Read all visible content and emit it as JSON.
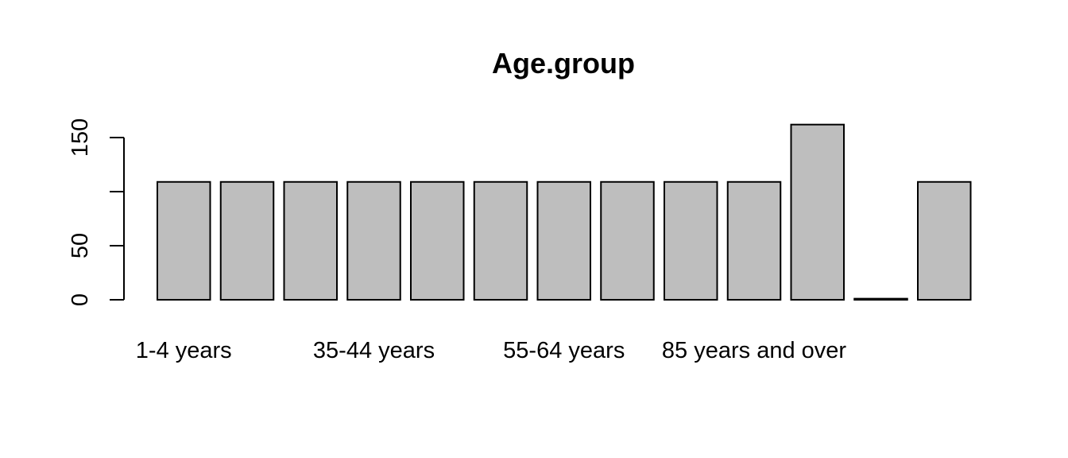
{
  "chart_data": {
    "type": "bar",
    "title": "Age.group",
    "xlabel": "",
    "ylabel": "",
    "categories": [
      "1-4 years",
      "",
      "",
      "35-44 years",
      "",
      "",
      "55-64 years",
      "",
      "",
      "85 years and over",
      "",
      "",
      ""
    ],
    "values": [
      109,
      109,
      109,
      109,
      109,
      109,
      109,
      109,
      109,
      109,
      162,
      1,
      109
    ],
    "ylim": [
      0,
      162
    ],
    "yticks": [
      0,
      50,
      100,
      150
    ],
    "ytick_labels": [
      "0",
      "50",
      "",
      "150"
    ],
    "grid": false,
    "bar_color": "#bebebe",
    "border_color": "#000000"
  }
}
